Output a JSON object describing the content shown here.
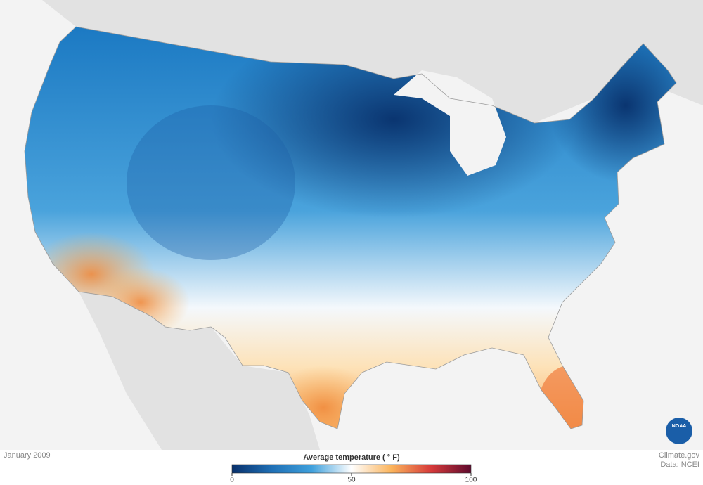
{
  "map": {
    "date": "January 2009",
    "legend": {
      "title": "Average temperature ( ° F)",
      "lim": [
        0,
        100
      ],
      "ticks": [
        0,
        50,
        100
      ],
      "colors": [
        "#08306b",
        "#1f6fb5",
        "#3fa0dc",
        "#ffffff",
        "#fbb45c",
        "#d63a3a",
        "#5e0a2e"
      ]
    }
  },
  "credits": {
    "site": "Climate.gov",
    "source": "Data: NCEI",
    "logo": "NOAA"
  }
}
